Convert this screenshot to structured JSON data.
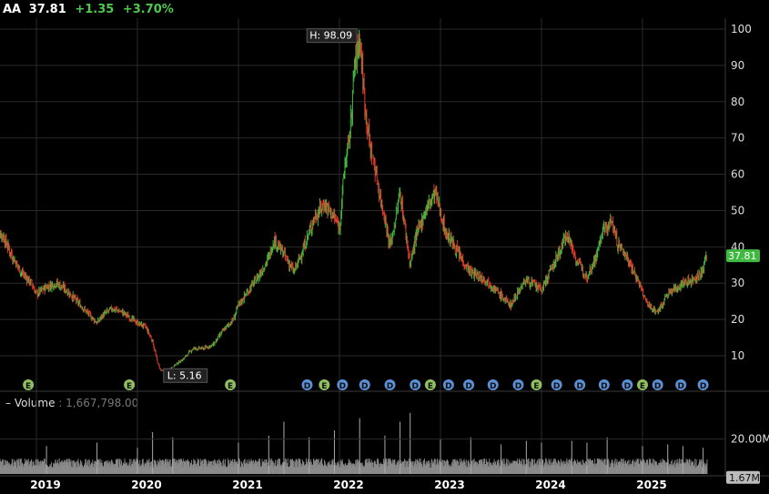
{
  "header": {
    "symbol": "AA",
    "price": "37.81",
    "change": "+1.35",
    "change_pct": "+3.70%"
  },
  "volume_label": {
    "label": "Volume",
    "value": "1,667,798.00"
  },
  "colors": {
    "up": "#3fb93f",
    "down": "#e03a2a",
    "grid": "#2a2a2a",
    "last_price_bg": "#3fb93f",
    "volume": "#8a8a8a",
    "event_badge": "#5b8fd6"
  },
  "chart_data": [
    {
      "type": "line",
      "title": "",
      "ylim": [
        3,
        100
      ],
      "y_ticks": [
        10,
        20,
        30,
        40,
        50,
        60,
        70,
        80,
        90,
        100
      ],
      "x_ticks": [
        "2019",
        "2020",
        "2021",
        "2022",
        "2023",
        "2024",
        "2025"
      ],
      "high": {
        "label": "H: 98.09",
        "value": 98.09
      },
      "low": {
        "label": "L: 5.16",
        "value": 5.16
      },
      "last_price": {
        "label": "37.81",
        "value": 37.81
      },
      "series": [
        {
          "x": [
            2018.6,
            2018.67,
            2018.75,
            2018.85,
            2018.95,
            2019.0,
            2019.1,
            2019.2,
            2019.3,
            2019.4,
            2019.5,
            2019.6,
            2019.65,
            2019.75,
            2019.85,
            2019.95,
            2020.0,
            2020.08,
            2020.15,
            2020.2,
            2020.23,
            2020.27,
            2020.35,
            2020.45,
            2020.55,
            2020.65,
            2020.75,
            2020.85,
            2020.95,
            2021.0,
            2021.1,
            2021.2,
            2021.3,
            2021.35,
            2021.45,
            2021.55,
            2021.65,
            2021.75,
            2021.85,
            2021.95,
            2022.0,
            2022.05,
            2022.1,
            2022.15,
            2022.2,
            2022.25,
            2022.3,
            2022.35,
            2022.4,
            2022.45,
            2022.5,
            2022.55,
            2022.6,
            2022.65,
            2022.7,
            2022.75,
            2022.85,
            2022.95,
            2023.05,
            2023.1,
            2023.2,
            2023.3,
            2023.45,
            2023.55,
            2023.65,
            2023.7,
            2023.75,
            2023.85,
            2023.95,
            2024.0,
            2024.1,
            2024.2,
            2024.25,
            2024.35,
            2024.45,
            2024.55,
            2024.6,
            2024.7,
            2024.75,
            2024.85,
            2024.95,
            2025.05,
            2025.15,
            2025.25,
            2025.3,
            2025.4,
            2025.5,
            2025.6,
            2025.62
          ],
          "y": [
            45,
            43,
            38,
            33,
            30,
            27,
            29,
            30,
            28,
            25,
            22,
            19,
            21,
            23,
            22,
            20,
            19,
            18,
            14,
            8,
            6,
            5.5,
            7,
            9,
            12,
            12,
            13,
            17,
            20,
            24,
            28,
            32,
            37,
            42,
            38,
            33,
            40,
            48,
            52,
            48,
            45,
            62,
            70,
            90,
            98,
            80,
            68,
            62,
            54,
            48,
            40,
            47,
            55,
            45,
            35,
            42,
            50,
            55,
            44,
            42,
            37,
            33,
            31,
            28,
            25,
            24,
            27,
            31,
            29,
            28,
            34,
            40,
            44,
            36,
            32,
            38,
            44,
            47,
            41,
            37,
            31,
            24,
            22,
            27,
            28,
            30,
            31,
            33,
            37.81
          ]
        }
      ]
    },
    {
      "type": "bar",
      "title": "",
      "ylim": [
        0,
        36000000
      ],
      "y_ticks": [
        20000000
      ],
      "y_tick_labels": [
        "20.00M"
      ],
      "last_volume": {
        "label": "1.67M",
        "value": 1667798
      },
      "spikes": {
        "x": [
          2019.1,
          2019.6,
          2020.0,
          2020.15,
          2020.35,
          2021.0,
          2021.3,
          2021.45,
          2021.7,
          2021.95,
          2022.2,
          2022.45,
          2022.6,
          2022.7,
          2023.0,
          2023.3,
          2023.6,
          2023.85,
          2024.0,
          2024.3,
          2024.45,
          2024.65,
          2025.0,
          2025.25,
          2025.4,
          2025.6
        ],
        "values": [
          16000000,
          18000000,
          15000000,
          24000000,
          21000000,
          18000000,
          22000000,
          30000000,
          21000000,
          25000000,
          32000000,
          22000000,
          30000000,
          35000000,
          20000000,
          21000000,
          17000000,
          19000000,
          18000000,
          19000000,
          18000000,
          21000000,
          16000000,
          17000000,
          16000000,
          15000000
        ]
      }
    }
  ],
  "events": [
    {
      "x": 2018.92,
      "label": "E"
    },
    {
      "x": 2019.92,
      "label": "E"
    },
    {
      "x": 2020.92,
      "label": "E"
    },
    {
      "x": 2021.68,
      "label": "D"
    },
    {
      "x": 2021.85,
      "label": "E"
    },
    {
      "x": 2022.03,
      "label": "D"
    },
    {
      "x": 2022.25,
      "label": "D"
    },
    {
      "x": 2022.5,
      "label": "D"
    },
    {
      "x": 2022.75,
      "label": "D"
    },
    {
      "x": 2022.9,
      "label": "E"
    },
    {
      "x": 2023.08,
      "label": "D"
    },
    {
      "x": 2023.28,
      "label": "D"
    },
    {
      "x": 2023.52,
      "label": "D"
    },
    {
      "x": 2023.77,
      "label": "D"
    },
    {
      "x": 2023.95,
      "label": "E"
    },
    {
      "x": 2024.15,
      "label": "D"
    },
    {
      "x": 2024.38,
      "label": "D"
    },
    {
      "x": 2024.62,
      "label": "D"
    },
    {
      "x": 2024.85,
      "label": "D"
    },
    {
      "x": 2025.0,
      "label": "E"
    },
    {
      "x": 2025.15,
      "label": "D"
    },
    {
      "x": 2025.38,
      "label": "D"
    },
    {
      "x": 2025.6,
      "label": "D"
    }
  ]
}
